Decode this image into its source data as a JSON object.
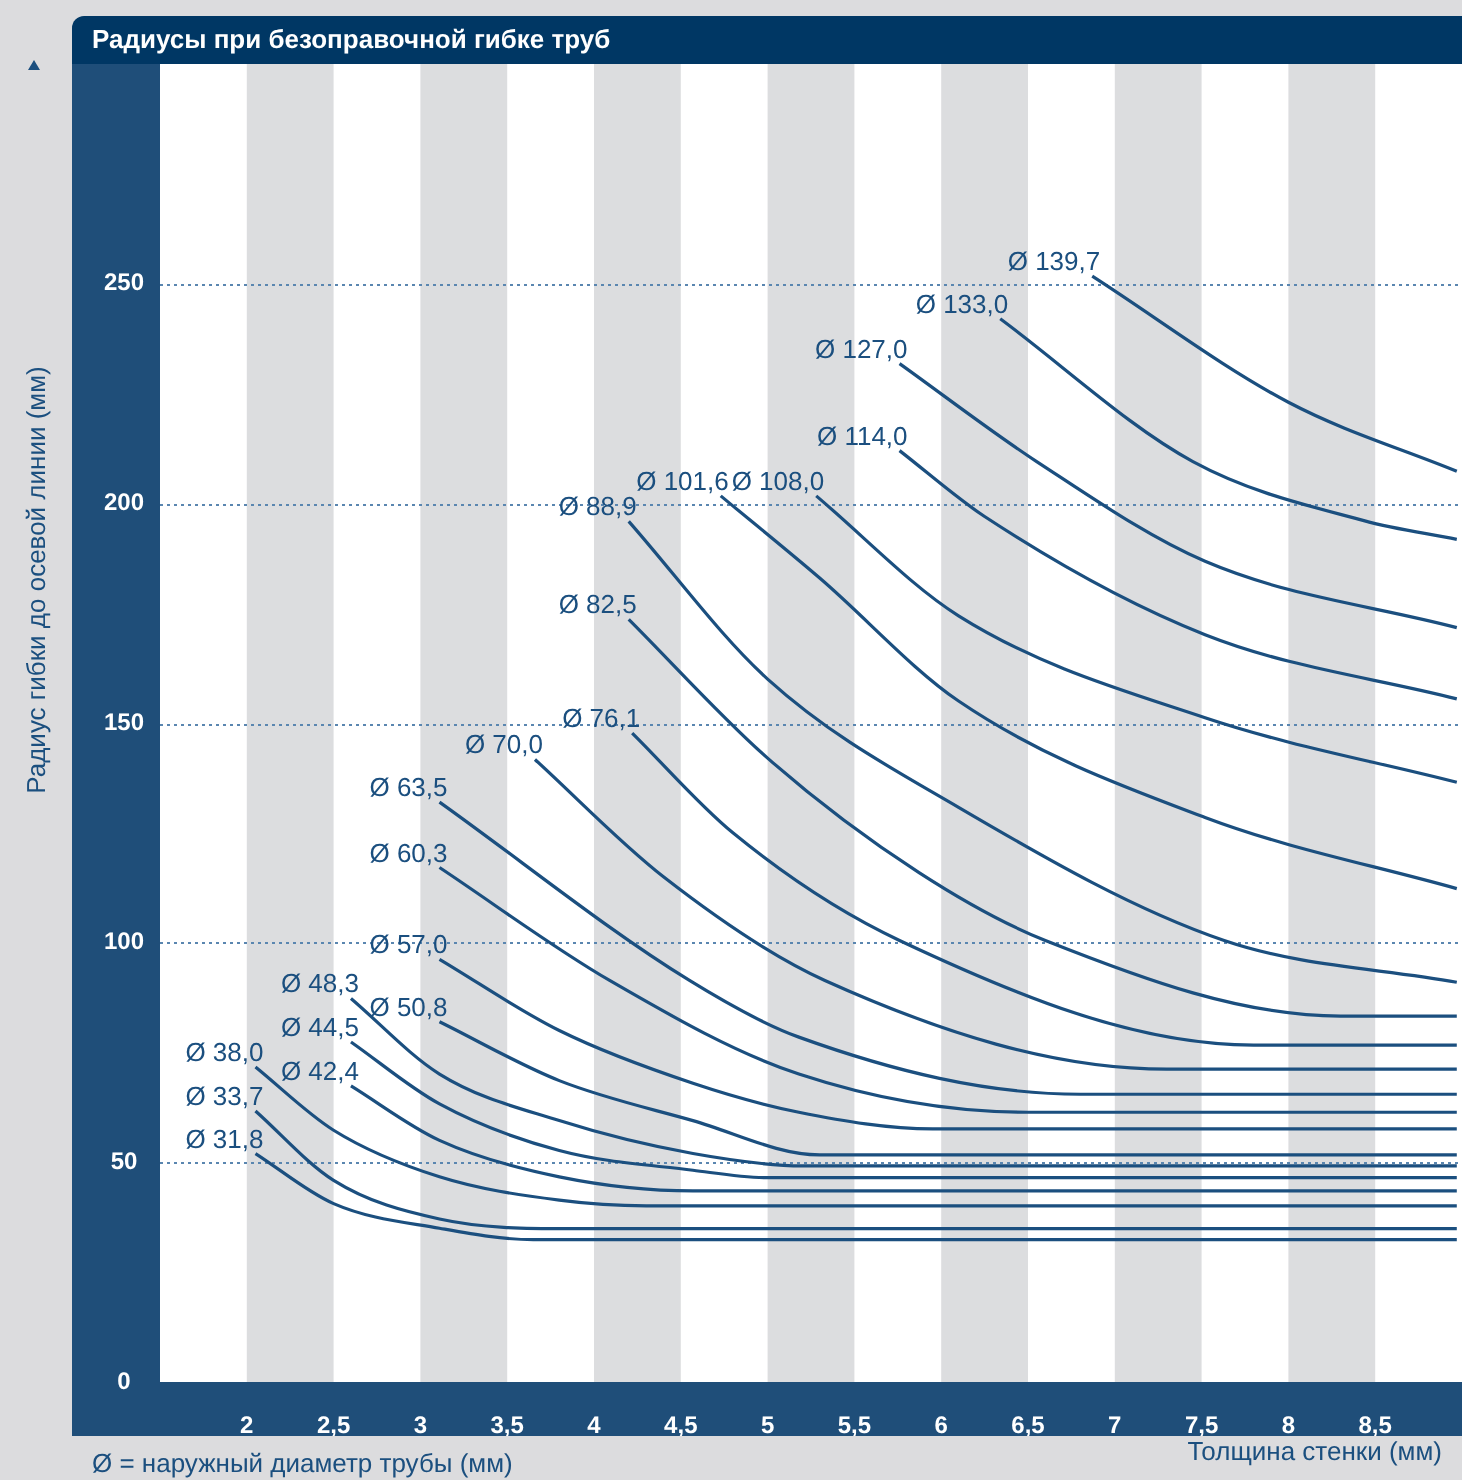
{
  "chart_data": {
    "type": "line",
    "title": "Радиусы при безоправочной гибке труб",
    "xlabel": "Толщина стенки (мм)",
    "ylabel": "Радиус гибки до осевой линии (мм)",
    "annotations": [
      "Ø = наружный диаметр трубы (мм)"
    ],
    "xlim": [
      1.5,
      9
    ],
    "ylim": [
      0,
      300
    ],
    "xticks": [
      2,
      {
        "value": 2.5,
        "label": "2,5"
      },
      3,
      {
        "value": 3.5,
        "label": "3,5"
      },
      4,
      {
        "value": 4.5,
        "label": "4,5"
      },
      5,
      {
        "value": 5.5,
        "label": "5,5"
      },
      6,
      {
        "value": 6.5,
        "label": "6,5"
      },
      7,
      {
        "value": 7.5,
        "label": "7,5"
      },
      8,
      {
        "value": 8.5,
        "label": "8,5"
      }
    ],
    "yticks": [
      0,
      50,
      100,
      150,
      200,
      250
    ],
    "grid": "y",
    "legend": false,
    "marker": "none",
    "line_style": "solid",
    "bands": [
      {
        "axis": "x",
        "from": 2,
        "to": 2.5,
        "color": "#dcdddf"
      },
      {
        "axis": "x",
        "from": 3,
        "to": 3.5,
        "color": "#dcdddf"
      },
      {
        "axis": "x",
        "from": 4,
        "to": 4.5,
        "color": "#dcdddf"
      },
      {
        "axis": "x",
        "from": 5,
        "to": 5.5,
        "color": "#dcdddf"
      },
      {
        "axis": "x",
        "from": 6,
        "to": 6.5,
        "color": "#dcdddf"
      },
      {
        "axis": "x",
        "from": 7,
        "to": 7.5,
        "color": "#dcdddf"
      },
      {
        "axis": "x",
        "from": 8,
        "to": 8.5,
        "color": "#dcdddf"
      }
    ],
    "series": [
      {
        "name": "Ø 31,8",
        "color": "#1b4f7f",
        "x": [
          2.05,
          2.5,
          3.11,
          3.65,
          8.97
        ],
        "values": [
          52,
          40.6,
          35,
          32.4,
          32.4
        ]
      },
      {
        "name": "Ø 33,7",
        "color": "#1b4f7f",
        "x": [
          2.05,
          2.5,
          3.11,
          3.85,
          8.97
        ],
        "values": [
          61.7,
          45.9,
          37.1,
          34.9,
          34.9
        ]
      },
      {
        "name": "Ø 38,0",
        "color": "#1b4f7f",
        "x": [
          2.05,
          2.5,
          3.11,
          3.8,
          4.3,
          8.97
        ],
        "values": [
          71.7,
          57.3,
          46.7,
          41.4,
          40.1,
          40.1
        ]
      },
      {
        "name": "Ø 42,4",
        "color": "#1b4f7f",
        "x": [
          2.6,
          3.11,
          3.8,
          4.57,
          8.97
        ],
        "values": [
          67.4,
          55,
          46.7,
          43.5,
          43.5
        ]
      },
      {
        "name": "Ø 44,5",
        "color": "#1b4f7f",
        "x": [
          2.6,
          3.11,
          3.8,
          4.57,
          5,
          8.97
        ],
        "values": [
          77.4,
          63.3,
          52.7,
          48.2,
          46.5,
          46.5
        ]
      },
      {
        "name": "Ø 48,3",
        "color": "#1b4f7f",
        "x": [
          2.6,
          3.11,
          3.8,
          4.57,
          5.2,
          8.97
        ],
        "values": [
          87.3,
          70.1,
          59.5,
          52,
          49.2,
          49.2
        ]
      },
      {
        "name": "Ø 50,8",
        "color": "#1b4f7f",
        "x": [
          3.11,
          3.8,
          4.57,
          5.3,
          8.97
        ],
        "values": [
          82,
          68.6,
          59.5,
          51.7,
          51.7
        ]
      },
      {
        "name": "Ø 57,0",
        "color": "#1b4f7f",
        "x": [
          3.11,
          3.8,
          4.57,
          5.18,
          5.95,
          8.97
        ],
        "values": [
          96.2,
          80,
          68,
          61.4,
          57.6,
          57.6
        ]
      },
      {
        "name": "Ø 60,3",
        "color": "#1b4f7f",
        "x": [
          3.11,
          4.09,
          5.18,
          6.5,
          8.97
        ],
        "values": [
          117.1,
          91.4,
          70.1,
          61.4,
          61.4
        ]
      },
      {
        "name": "Ø 63,5",
        "color": "#1b4f7f",
        "x": [
          3.11,
          4.55,
          5.18,
          6.8,
          8.97
        ],
        "values": [
          132,
          91.4,
          78.5,
          65.5,
          65.5
        ]
      },
      {
        "name": "Ø 70,0",
        "color": "#1b4f7f",
        "x": [
          3.66,
          4.4,
          5.33,
          7.3,
          8.97
        ],
        "values": [
          141.7,
          115,
          91.4,
          71.2,
          71.2
        ]
      },
      {
        "name": "Ø 76,1",
        "color": "#1b4f7f",
        "x": [
          4.22,
          4.8,
          5.76,
          7.8,
          8.97
        ],
        "values": [
          147.7,
          125,
          100.5,
          76.7,
          76.7
        ]
      },
      {
        "name": "Ø 82,5",
        "color": "#1b4f7f",
        "x": [
          4.2,
          5,
          5.87,
          6.6,
          8.3,
          8.97
        ],
        "values": [
          173.6,
          142,
          116,
          100.5,
          83.3,
          83.3
        ]
      },
      {
        "name": "Ø 88,9",
        "color": "#1b4f7f",
        "x": [
          4.2,
          5,
          6.1,
          7.63,
          8.97
        ],
        "values": [
          195.9,
          160,
          130.8,
          100.5,
          91
        ]
      },
      {
        "name": "Ø 101,6",
        "color": "#1b4f7f",
        "x": [
          4.73,
          5.3,
          6.1,
          7.52,
          8.97
        ],
        "values": [
          201.7,
          183,
          155,
          128.5,
          112.3
        ]
      },
      {
        "name": "Ø 108,0",
        "color": "#1b4f7f",
        "x": [
          5.28,
          6.1,
          7.52,
          8.97
        ],
        "values": [
          201.7,
          174.4,
          151.2,
          136.5
        ]
      },
      {
        "name": "Ø 114,0",
        "color": "#1b4f7f",
        "x": [
          5.76,
          6.25,
          7.52,
          8.97
        ],
        "values": [
          212,
          197,
          170.1,
          155.5
        ]
      },
      {
        "name": "Ø 127,0",
        "color": "#1b4f7f",
        "x": [
          5.76,
          6.55,
          7.52,
          8.97
        ],
        "values": [
          231.8,
          209.5,
          186.8,
          171.7
        ]
      },
      {
        "name": "Ø 133,0",
        "color": "#1b4f7f",
        "x": [
          6.34,
          7.45,
          8.44,
          8.97
        ],
        "values": [
          242,
          209.5,
          196,
          191.8
        ]
      },
      {
        "name": "Ø 139,7",
        "color": "#1b4f7f",
        "x": [
          6.87,
          8,
          8.97
        ],
        "values": [
          251.7,
          223,
          207.3
        ]
      }
    ]
  }
}
